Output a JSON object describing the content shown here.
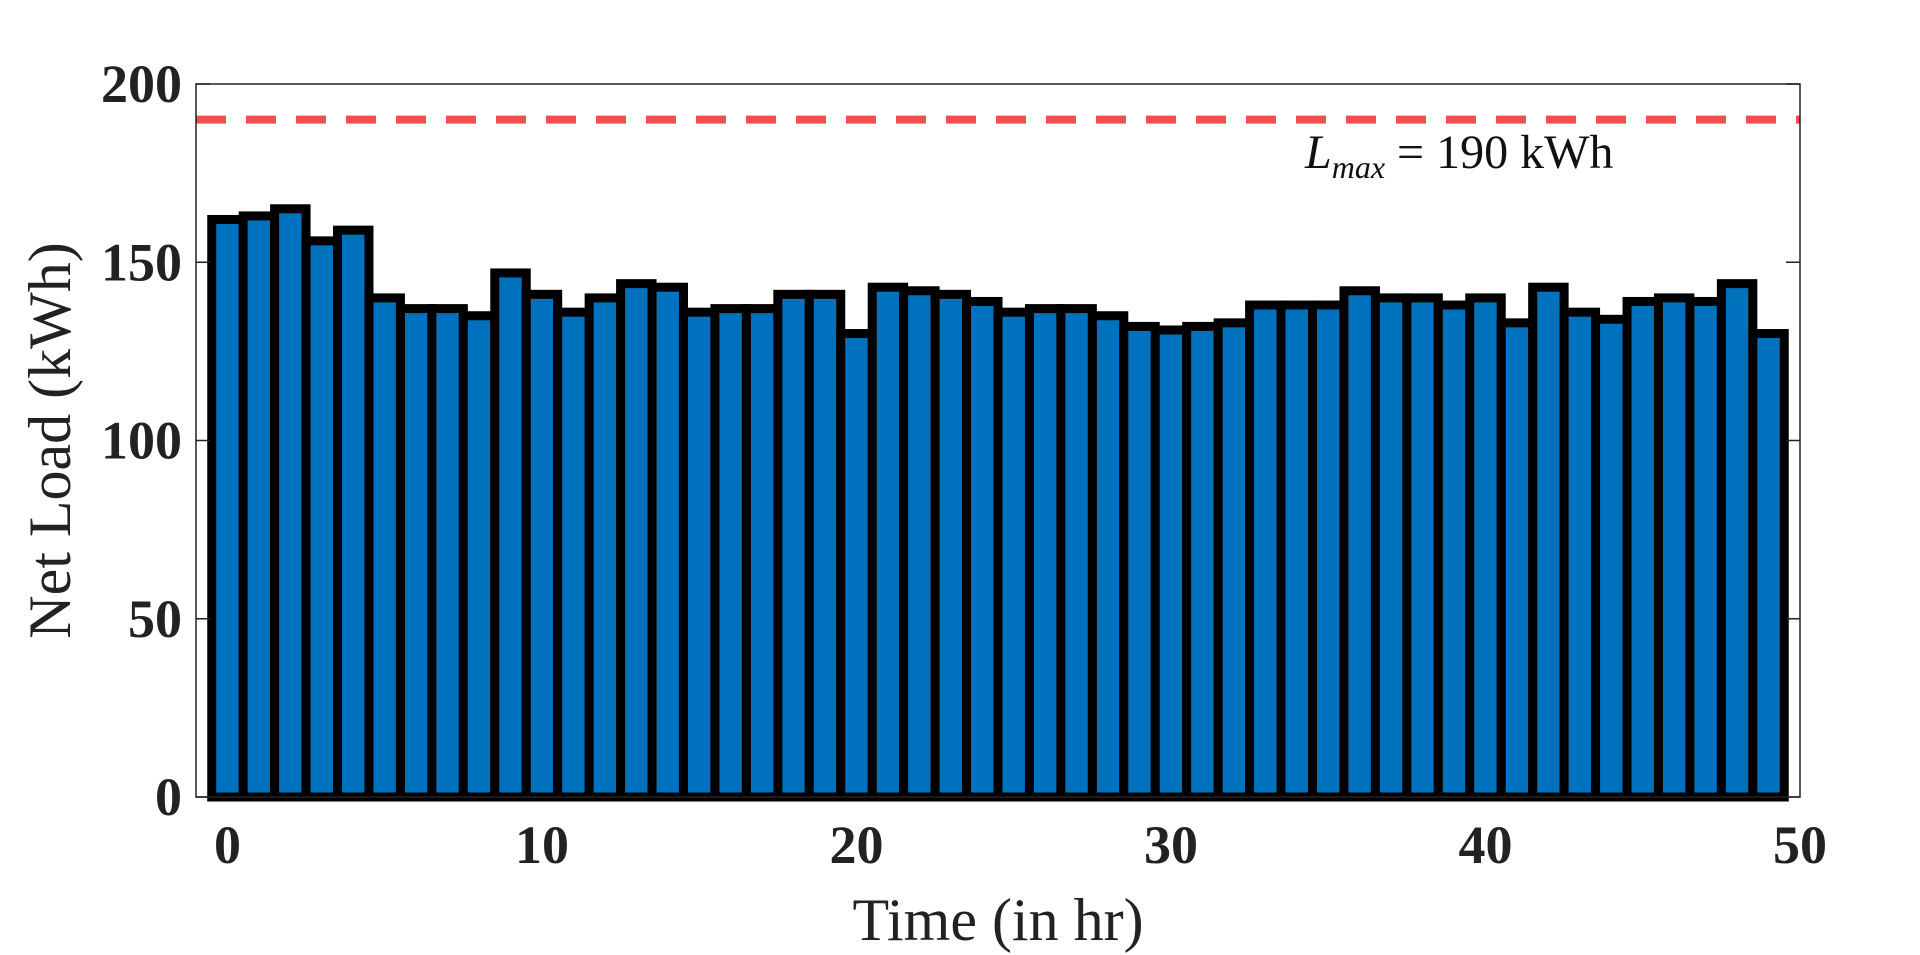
{
  "chart_data": {
    "type": "bar",
    "title": "",
    "xlabel": "Time (in hr)",
    "ylabel": "Net Load (kWh)",
    "xlim": [
      -1,
      50
    ],
    "ylim": [
      0,
      200
    ],
    "xticks": [
      0,
      10,
      20,
      30,
      40,
      50
    ],
    "yticks": [
      0,
      50,
      100,
      150,
      200
    ],
    "grid": false,
    "legend": "none",
    "bar_color": "#0072BD",
    "bar_edge_color": "#000000",
    "x": [
      0,
      1,
      2,
      3,
      4,
      5,
      6,
      7,
      8,
      9,
      10,
      11,
      12,
      13,
      14,
      15,
      16,
      17,
      18,
      19,
      20,
      21,
      22,
      23,
      24,
      25,
      26,
      27,
      28,
      29,
      30,
      31,
      32,
      33,
      34,
      35,
      36,
      37,
      38,
      39,
      40,
      41,
      42,
      43,
      44,
      45,
      46,
      47,
      48,
      49
    ],
    "values": [
      162,
      163,
      165,
      156,
      159,
      140,
      137,
      137,
      135,
      147,
      141,
      136,
      140,
      144,
      143,
      136,
      137,
      137,
      141,
      141,
      130,
      143,
      142,
      141,
      139,
      136,
      137,
      137,
      135,
      132,
      131,
      132,
      133,
      138,
      138,
      138,
      142,
      140,
      140,
      138,
      140,
      133,
      143,
      136,
      134,
      139,
      140,
      139,
      144,
      130
    ],
    "threshold": {
      "value": 190,
      "color": "#F0504F",
      "style": "dashed",
      "label_main": "L",
      "label_sub": "max",
      "label_rest": " = 190 kWh"
    }
  }
}
